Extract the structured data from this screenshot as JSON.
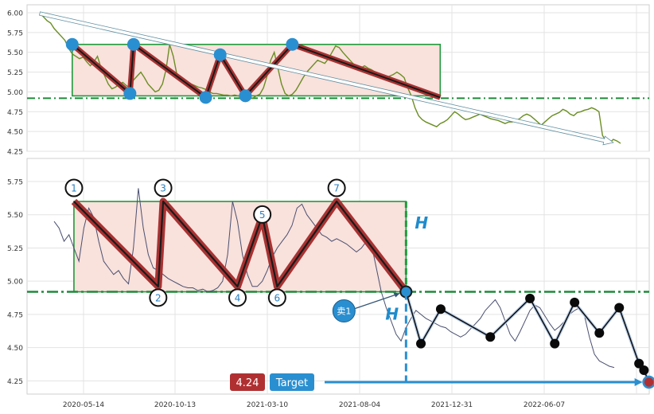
{
  "chart_data": [
    {
      "type": "line",
      "panel": "top",
      "ylim": [
        4.25,
        6.0
      ],
      "y_ticks": [
        "6.00",
        "5.75",
        "5.50",
        "5.25",
        "5.00",
        "4.75",
        "4.50",
        "4.25"
      ],
      "series": [
        {
          "values": [
            5.99,
            5.95,
            5.9,
            5.87,
            5.8,
            5.75,
            5.7,
            5.65,
            5.55,
            5.48,
            5.45,
            5.42,
            5.44,
            5.38,
            5.33,
            5.38,
            5.45,
            5.3,
            5.2,
            5.1,
            5.04,
            5.06,
            5.1,
            5.12,
            5.08,
            5.05,
            5.15,
            5.2,
            5.25,
            5.18,
            5.1,
            5.05,
            5.0,
            5.02,
            5.1,
            5.28,
            5.6,
            5.45,
            5.22,
            5.18,
            5.15,
            5.12,
            5.1,
            5.08,
            5.06,
            5.05,
            5.03,
            5.0,
            4.98,
            4.98,
            4.97,
            4.96,
            4.96,
            4.95,
            4.96,
            4.95,
            4.94,
            4.95,
            4.93,
            4.92,
            4.95,
            4.97,
            5.05,
            5.2,
            5.4,
            5.5,
            5.3,
            5.1,
            4.98,
            4.95,
            4.97,
            5.02,
            5.1,
            5.18,
            5.25,
            5.3,
            5.35,
            5.4,
            5.38,
            5.36,
            5.42,
            5.5,
            5.58,
            5.56,
            5.5,
            5.45,
            5.4,
            5.35,
            5.32,
            5.3,
            5.33,
            5.3,
            5.28,
            5.25,
            5.22,
            5.2,
            5.18,
            5.2,
            5.22,
            5.25,
            5.22,
            5.18,
            5.05,
            4.95,
            4.8,
            4.7,
            4.65,
            4.62,
            4.6,
            4.58,
            4.56,
            4.6,
            4.62,
            4.65,
            4.7,
            4.75,
            4.72,
            4.68,
            4.65,
            4.66,
            4.68,
            4.7,
            4.72,
            4.7,
            4.68,
            4.66,
            4.65,
            4.64,
            4.62,
            4.6,
            4.62,
            4.62,
            4.64,
            4.66,
            4.7,
            4.72,
            4.7,
            4.66,
            4.62,
            4.58,
            4.62,
            4.66,
            4.7,
            4.72,
            4.74,
            4.78,
            4.76,
            4.72,
            4.7,
            4.74,
            4.75,
            4.77,
            4.78,
            4.8,
            4.78,
            4.75,
            4.45,
            4.38,
            4.36,
            4.4,
            4.38,
            4.35
          ]
        }
      ],
      "lines": [
        {
          "kind": "trend",
          "from": [
            0,
            5.99
          ],
          "to": [
            159,
            4.36
          ]
        },
        {
          "kind": "support-dashdot",
          "y": 4.92
        }
      ],
      "rectangle": {
        "x": [
          9,
          111
        ],
        "y": [
          4.95,
          5.6
        ]
      },
      "pattern_points": [
        {
          "x": 9,
          "y": 5.6
        },
        {
          "x": 25,
          "y": 4.98
        },
        {
          "x": 26,
          "y": 5.6
        },
        {
          "x": 46,
          "y": 4.93
        },
        {
          "x": 50,
          "y": 5.47
        },
        {
          "x": 57,
          "y": 4.95
        },
        {
          "x": 70,
          "y": 5.6
        },
        {
          "x": 111,
          "y": 4.93
        }
      ]
    },
    {
      "type": "line",
      "panel": "bottom",
      "ylim": [
        4.15,
        5.9
      ],
      "y_ticks": [
        "5.75",
        "5.50",
        "5.25",
        "5.00",
        "4.75",
        "4.50",
        "4.25"
      ],
      "x_ticks": [
        "2020-05-14",
        "2020-10-13",
        "2021-03-10",
        "2021-08-04",
        "2021-12-31",
        "2022-06-07"
      ],
      "series": [
        {
          "values": [
            5.45,
            5.4,
            5.3,
            5.35,
            5.25,
            5.15,
            5.4,
            5.55,
            5.48,
            5.3,
            5.15,
            5.1,
            5.05,
            5.08,
            5.02,
            4.98,
            5.25,
            5.7,
            5.4,
            5.2,
            5.1,
            5.08,
            5.05,
            5.02,
            5.0,
            4.98,
            4.96,
            4.95,
            4.95,
            4.93,
            4.94,
            4.92,
            4.93,
            4.95,
            5.0,
            5.2,
            5.6,
            5.45,
            5.2,
            5.05,
            4.96,
            4.96,
            5.0,
            5.08,
            5.18,
            5.25,
            5.3,
            5.35,
            5.42,
            5.55,
            5.58,
            5.5,
            5.45,
            5.4,
            5.35,
            5.33,
            5.3,
            5.32,
            5.3,
            5.28,
            5.25,
            5.22,
            5.25,
            5.3,
            5.28,
            5.1,
            4.92,
            4.8,
            4.7,
            4.6,
            4.55,
            4.65,
            4.72,
            4.78,
            4.75,
            4.72,
            4.7,
            4.68,
            4.66,
            4.65,
            4.62,
            4.6,
            4.58,
            4.6,
            4.64,
            4.68,
            4.72,
            4.78,
            4.82,
            4.86,
            4.8,
            4.7,
            4.6,
            4.55,
            4.62,
            4.7,
            4.78,
            4.82,
            4.8,
            4.74,
            4.68,
            4.63,
            4.66,
            4.7,
            4.75,
            4.78,
            4.8,
            4.74,
            4.58,
            4.45,
            4.4,
            4.38,
            4.36,
            4.35
          ]
        }
      ],
      "support_y": 4.92,
      "rectangle": {
        "x": [
          4,
          71
        ],
        "y": [
          4.92,
          5.6
        ]
      },
      "pattern_points": [
        {
          "label": "1",
          "x": 4,
          "y": 5.6
        },
        {
          "label": "2",
          "x": 21,
          "y": 4.96
        },
        {
          "label": "3",
          "x": 22,
          "y": 5.6
        },
        {
          "label": "4",
          "x": 37,
          "y": 4.96
        },
        {
          "label": "5",
          "x": 42,
          "y": 5.49
        },
        {
          "label": "6",
          "x": 45,
          "y": 4.96
        },
        {
          "label": "7",
          "x": 57,
          "y": 5.6
        },
        {
          "label": "",
          "x": 71,
          "y": 4.92
        }
      ],
      "projection_points": [
        {
          "x": 71,
          "y": 4.92
        },
        {
          "x": 74,
          "y": 4.53
        },
        {
          "x": 78,
          "y": 4.79
        },
        {
          "x": 88,
          "y": 4.58
        },
        {
          "x": 96,
          "y": 4.87
        },
        {
          "x": 101,
          "y": 4.53
        },
        {
          "x": 105,
          "y": 4.84
        },
        {
          "x": 110,
          "y": 4.61
        },
        {
          "x": 114,
          "y": 4.8
        },
        {
          "x": 118,
          "y": 4.38
        },
        {
          "x": 119,
          "y": 4.33
        },
        {
          "x": 120,
          "y": 4.24
        }
      ],
      "annotations": {
        "sell_label": "卖1",
        "height_label": "H",
        "target_value": "4.24",
        "target_label": "Target"
      }
    }
  ]
}
